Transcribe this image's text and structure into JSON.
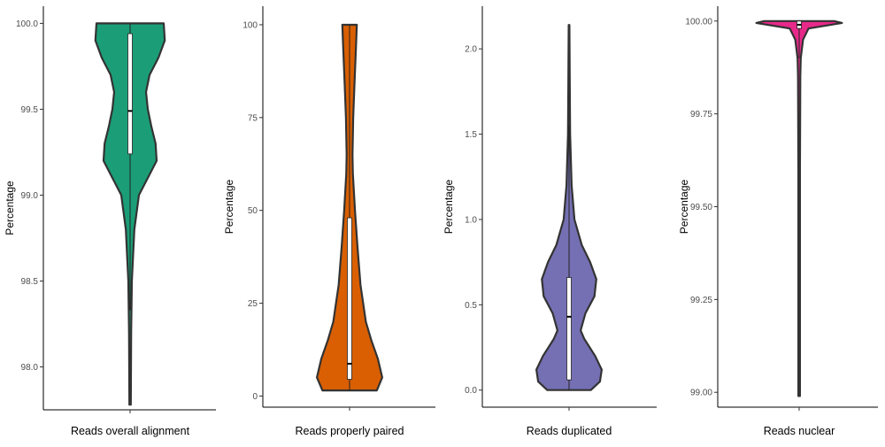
{
  "chart_data": [
    {
      "type": "violin",
      "xlabel": "Reads overall alignment",
      "ylabel": "Percentage",
      "ylim": [
        97.75,
        100.1
      ],
      "yticks": [
        98.0,
        98.5,
        99.0,
        99.5,
        100.0
      ],
      "ytick_labels": [
        "98.0",
        "98.5",
        "99.0",
        "99.5",
        "100.0"
      ],
      "color": "#1b9e77",
      "density": [
        [
          97.78,
          0.02
        ],
        [
          98.2,
          0.03
        ],
        [
          98.5,
          0.05
        ],
        [
          98.8,
          0.12
        ],
        [
          99.0,
          0.25
        ],
        [
          99.1,
          0.5
        ],
        [
          99.2,
          0.75
        ],
        [
          99.3,
          0.72
        ],
        [
          99.4,
          0.6
        ],
        [
          99.5,
          0.5
        ],
        [
          99.6,
          0.45
        ],
        [
          99.7,
          0.55
        ],
        [
          99.8,
          0.8
        ],
        [
          99.9,
          0.98
        ],
        [
          100.0,
          0.95
        ]
      ],
      "box": {
        "q1": 99.24,
        "median": 99.49,
        "q3": 99.94,
        "whisker_low": 98.33,
        "whisker_high": 100.0
      }
    },
    {
      "type": "violin",
      "xlabel": "Reads properly paired",
      "ylabel": "Percentage",
      "ylim": [
        -3,
        105
      ],
      "yticks": [
        0,
        25,
        50,
        75,
        100
      ],
      "ytick_labels": [
        "0",
        "25",
        "50",
        "75",
        "100"
      ],
      "color": "#d95f02",
      "density": [
        [
          1.5,
          0.75
        ],
        [
          5,
          0.9
        ],
        [
          10,
          0.78
        ],
        [
          15,
          0.6
        ],
        [
          20,
          0.45
        ],
        [
          30,
          0.3
        ],
        [
          40,
          0.22
        ],
        [
          50,
          0.15
        ],
        [
          60,
          0.09
        ],
        [
          65,
          0.08
        ],
        [
          75,
          0.1
        ],
        [
          85,
          0.14
        ],
        [
          95,
          0.18
        ],
        [
          100,
          0.2
        ]
      ],
      "box": {
        "q1": 4.5,
        "median": 8.7,
        "q3": 48,
        "whisker_low": 1.5,
        "whisker_high": 100
      }
    },
    {
      "type": "violin",
      "xlabel": "Reads duplicated",
      "ylabel": "Percentage",
      "ylim": [
        -0.1,
        2.25
      ],
      "yticks": [
        0.0,
        0.5,
        1.0,
        1.5,
        2.0
      ],
      "ytick_labels": [
        "0.0",
        "0.5",
        "1.0",
        "1.5",
        "2.0"
      ],
      "color": "#7570b3",
      "density": [
        [
          0.0,
          0.6
        ],
        [
          0.05,
          0.85
        ],
        [
          0.12,
          0.9
        ],
        [
          0.2,
          0.72
        ],
        [
          0.3,
          0.42
        ],
        [
          0.35,
          0.32
        ],
        [
          0.45,
          0.45
        ],
        [
          0.55,
          0.7
        ],
        [
          0.65,
          0.75
        ],
        [
          0.75,
          0.58
        ],
        [
          0.85,
          0.35
        ],
        [
          1.0,
          0.15
        ],
        [
          1.2,
          0.07
        ],
        [
          1.5,
          0.03
        ],
        [
          1.8,
          0.02
        ],
        [
          2.14,
          0.01
        ]
      ],
      "box": {
        "q1": 0.06,
        "median": 0.43,
        "q3": 0.66,
        "whisker_low": 0.0,
        "whisker_high": 1.55
      }
    },
    {
      "type": "violin",
      "xlabel": "Reads nuclear",
      "ylabel": "Percentage",
      "ylim": [
        98.96,
        100.04
      ],
      "yticks": [
        99.0,
        99.25,
        99.5,
        99.75,
        100.0
      ],
      "ytick_labels": [
        "99.00",
        "99.25",
        "99.50",
        "99.75",
        "100.00"
      ],
      "color": "#e7298a",
      "density": [
        [
          98.99,
          0.01
        ],
        [
          99.6,
          0.01
        ],
        [
          99.85,
          0.015
        ],
        [
          99.9,
          0.02
        ],
        [
          99.95,
          0.05
        ],
        [
          99.98,
          0.12
        ],
        [
          99.995,
          0.55
        ],
        [
          100.0,
          0.45
        ]
      ],
      "box": {
        "q1": 99.98,
        "median": 99.99,
        "q3": 100.0,
        "whisker_low": 99.9,
        "whisker_high": 100.0
      }
    }
  ]
}
